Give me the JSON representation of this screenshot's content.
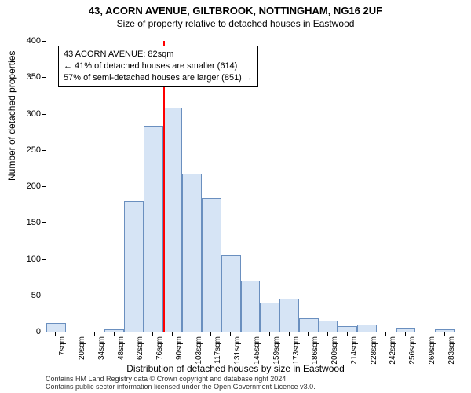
{
  "title_line1": "43, ACORN AVENUE, GILTBROOK, NOTTINGHAM, NG16 2UF",
  "title_line1_fontsize": 13,
  "title_line2": "Size of property relative to detached houses in Eastwood",
  "title_line2_fontsize": 12,
  "chart": {
    "type": "histogram",
    "ylim": [
      0,
      400
    ],
    "ytick_step": 50,
    "y_ticks": [
      0,
      50,
      100,
      150,
      200,
      250,
      300,
      350,
      400
    ],
    "x_categories": [
      "7sqm",
      "20sqm",
      "34sqm",
      "48sqm",
      "62sqm",
      "76sqm",
      "90sqm",
      "103sqm",
      "117sqm",
      "131sqm",
      "145sqm",
      "159sqm",
      "173sqm",
      "186sqm",
      "200sqm",
      "214sqm",
      "228sqm",
      "242sqm",
      "256sqm",
      "269sqm",
      "283sqm"
    ],
    "values": [
      12,
      0,
      0,
      3,
      180,
      283,
      308,
      217,
      184,
      105,
      70,
      40,
      45,
      18,
      15,
      8,
      10,
      0,
      5,
      0,
      3
    ],
    "bar_fill": "#d6e4f5",
    "bar_stroke": "#6a8fbf",
    "bar_width_ratio": 1.0,
    "background_color": "#ffffff",
    "ref_line_index": 6,
    "ref_line_color": "#ff0000",
    "legend": {
      "line1": "43 ACORN AVENUE: 82sqm",
      "line2": "← 41% of detached houses are smaller (614)",
      "line3": "57% of semi-detached houses are larger (851) →"
    },
    "y_axis_label": "Number of detached properties",
    "x_axis_label": "Distribution of detached houses by size in Eastwood",
    "label_fontsize": 12
  },
  "footer": {
    "line1": "Contains HM Land Registry data © Crown copyright and database right 2024.",
    "line2": "Contains public sector information licensed under the Open Government Licence v3.0."
  }
}
